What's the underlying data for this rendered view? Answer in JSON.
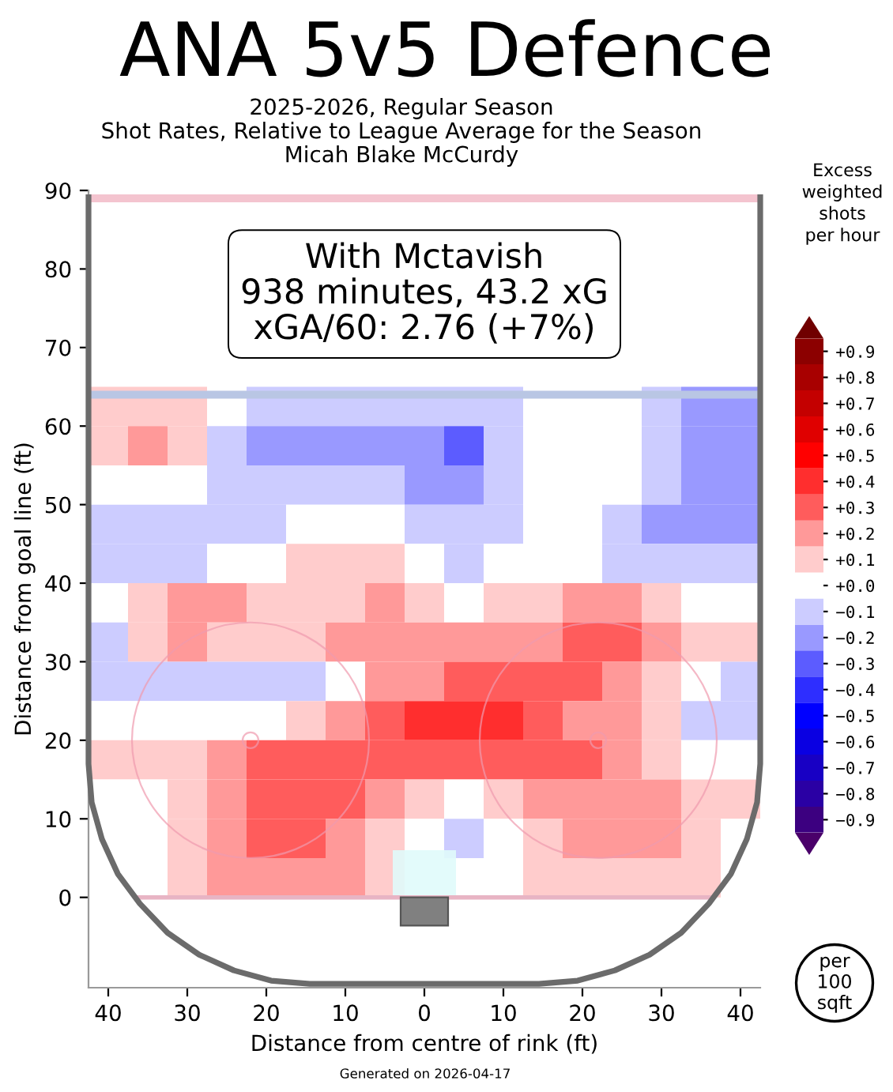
{
  "chart_data": {
    "type": "heatmap",
    "title": "ANA 5v5 Defence",
    "subtitle": "2025-2026, Regular Season\nShot Rates, Relative to League Average for the Season\nMicah Blake McCurdy",
    "xlabel": "Distance from centre of rink (ft)",
    "ylabel": "Distance from goal line (ft)",
    "clabel": "Excess\nweighted\nshots\nper hour",
    "annotations": [
      "With Mctavish\n938 minutes, 43.2 xG\nxGA/60: 2.76 (+7%)",
      "per\n100\nsqft",
      "Generated on 2026-04-17"
    ],
    "x": [
      -40,
      -35,
      -30,
      -25,
      -20,
      -15,
      -10,
      -5,
      0,
      5,
      10,
      15,
      20,
      25,
      30,
      35,
      40
    ],
    "y": [
      62.5,
      57.5,
      52.5,
      47.5,
      42.5,
      37.5,
      32.5,
      27.5,
      22.5,
      17.5,
      12.5,
      7.5,
      2.5
    ],
    "cells": [
      [
        0.1,
        0.1,
        0.1,
        0,
        -0.1,
        -0.1,
        -0.1,
        -0.1,
        -0.1,
        -0.1,
        -0.1,
        0,
        0,
        0,
        -0.1,
        -0.2,
        -0.2
      ],
      [
        0.1,
        0.2,
        0.1,
        -0.1,
        -0.2,
        -0.2,
        -0.2,
        -0.2,
        -0.2,
        -0.3,
        -0.1,
        0,
        0,
        0,
        -0.1,
        -0.2,
        -0.2
      ],
      [
        0,
        0,
        0,
        -0.1,
        -0.1,
        -0.1,
        -0.1,
        -0.1,
        -0.2,
        -0.2,
        -0.1,
        0,
        0,
        0,
        -0.1,
        -0.2,
        -0.2
      ],
      [
        -0.1,
        -0.1,
        -0.1,
        -0.1,
        -0.1,
        0,
        0,
        0,
        -0.1,
        -0.1,
        -0.1,
        0,
        0,
        -0.1,
        -0.2,
        -0.2,
        -0.2
      ],
      [
        -0.1,
        -0.1,
        -0.1,
        0,
        0,
        0.1,
        0.1,
        0.1,
        0,
        -0.1,
        0,
        0,
        0,
        -0.1,
        -0.1,
        -0.1,
        -0.1
      ],
      [
        0,
        0.1,
        0.2,
        0.2,
        0.1,
        0.1,
        0.1,
        0.2,
        0.1,
        0,
        0.1,
        0.1,
        0.2,
        0.2,
        0.1,
        0,
        0
      ],
      [
        -0.1,
        0.1,
        0.2,
        0.1,
        0.1,
        0.1,
        0.2,
        0.2,
        0.2,
        0.2,
        0.2,
        0.2,
        0.3,
        0.3,
        0.2,
        0.1,
        0.1
      ],
      [
        -0.1,
        -0.1,
        -0.1,
        -0.1,
        -0.1,
        -0.1,
        0,
        0.2,
        0.2,
        0.3,
        0.3,
        0.3,
        0.3,
        0.2,
        0.1,
        0,
        -0.1
      ],
      [
        0,
        0,
        0,
        0,
        0,
        0.1,
        0.2,
        0.3,
        0.4,
        0.4,
        0.4,
        0.3,
        0.2,
        0.2,
        0.1,
        -0.1,
        -0.1
      ],
      [
        0.1,
        0.1,
        0.1,
        0.2,
        0.3,
        0.3,
        0.3,
        0.3,
        0.3,
        0.3,
        0.3,
        0.3,
        0.3,
        0.2,
        0.1,
        0,
        0
      ],
      [
        0,
        0,
        0.1,
        0.2,
        0.3,
        0.3,
        0.3,
        0.2,
        0.1,
        0,
        0.1,
        0.2,
        0.2,
        0.2,
        0.2,
        0.1,
        0.1
      ],
      [
        0,
        0,
        0.1,
        0.2,
        0.3,
        0.3,
        0.2,
        0.1,
        0,
        -0.1,
        0,
        0.1,
        0.2,
        0.2,
        0.2,
        0.1,
        0
      ],
      [
        0,
        0,
        0.1,
        0.2,
        0.2,
        0.2,
        0.2,
        0.1,
        null,
        0,
        0,
        0.1,
        0.1,
        0.1,
        0.1,
        0.1,
        0
      ]
    ],
    "clim": [
      -0.95,
      0.95
    ],
    "cticks": [
      {
        "value": 0.9,
        "label": "+0.9"
      },
      {
        "value": 0.8,
        "label": "+0.8"
      },
      {
        "value": 0.7,
        "label": "+0.7"
      },
      {
        "value": 0.6,
        "label": "+0.6"
      },
      {
        "value": 0.5,
        "label": "+0.5"
      },
      {
        "value": 0.4,
        "label": "+0.4"
      },
      {
        "value": 0.3,
        "label": "+0.3"
      },
      {
        "value": 0.2,
        "label": "+0.2"
      },
      {
        "value": 0.1,
        "label": "+0.1"
      },
      {
        "value": 0,
        "label": "+0.0"
      },
      {
        "value": -0.1,
        "label": "−0.1"
      },
      {
        "value": -0.2,
        "label": "−0.2"
      },
      {
        "value": -0.3,
        "label": "−0.3"
      },
      {
        "value": -0.4,
        "label": "−0.4"
      },
      {
        "value": -0.5,
        "label": "−0.5"
      },
      {
        "value": -0.6,
        "label": "−0.6"
      },
      {
        "value": -0.7,
        "label": "−0.7"
      },
      {
        "value": -0.8,
        "label": "−0.8"
      },
      {
        "value": -0.9,
        "label": "−0.9"
      }
    ],
    "series": [
      {
        "type": "line",
        "color": "#6b6b6b",
        "x": [
          -42.5,
          -42.5,
          -42.1,
          -40.8,
          -38.8,
          -36.0,
          -32.5,
          -28.5,
          -24.1,
          -19.4,
          -14.5,
          14.5,
          19.4,
          24.1,
          28.5,
          32.5,
          36.0,
          38.8,
          40.8,
          42.1,
          42.5,
          42.5
        ],
        "values": [
          89.5,
          17,
          12.1,
          7.4,
          3.0,
          -0.8,
          -4.5,
          -7.3,
          -9.3,
          -10.6,
          -11,
          -11,
          -10.6,
          -9.3,
          -7.3,
          -4.5,
          -0.8,
          3.0,
          7.4,
          12.1,
          17,
          89.5
        ]
      }
    ],
    "xlim": [
      -42.5,
      42.5
    ],
    "xticks": [
      {
        "value": -40,
        "label": "40"
      },
      {
        "value": -30,
        "label": "30"
      },
      {
        "value": -20,
        "label": "20"
      },
      {
        "value": -10,
        "label": "10"
      },
      0,
      10,
      20,
      30,
      40
    ],
    "ylim": [
      -11.5,
      90
    ],
    "yticks": [
      0,
      10,
      20,
      30,
      40,
      50,
      60,
      70,
      80,
      90
    ],
    "ref_lines": [
      {
        "axis": "y",
        "value": 0,
        "color": "#e8b4c4"
      }
    ],
    "bands": [
      {
        "axis": "y",
        "from": 63.5,
        "to": 64.5,
        "color": "#b9c6e4"
      },
      {
        "axis": "y",
        "from": 88.5,
        "to": 89.5,
        "color": "#f4c4cf"
      }
    ]
  }
}
